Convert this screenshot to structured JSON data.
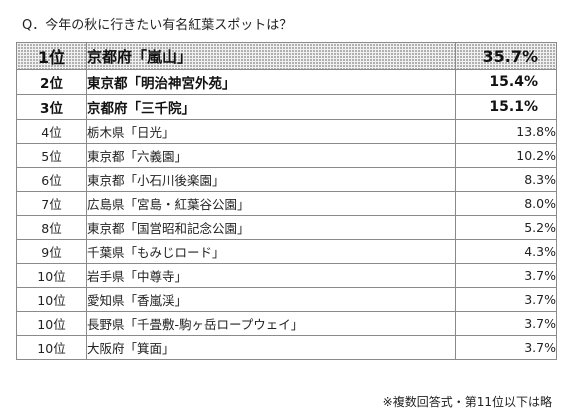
{
  "question": "Q．今年の秋に行きたい有名紅葉スポットは？",
  "rows": [
    {
      "rank": "1位",
      "spot": "京都府「嵐山」",
      "pct": "35.7%"
    },
    {
      "rank": "2位",
      "spot": "東京都「明治神宮外苑」",
      "pct": "15.4%"
    },
    {
      "rank": "3位",
      "spot": "京都府「三千院」",
      "pct": "15.1%"
    },
    {
      "rank": "4位",
      "spot": "栃木県「日光」",
      "pct": "13.8%"
    },
    {
      "rank": "5位",
      "spot": "東京都「六義園」",
      "pct": "10.2%"
    },
    {
      "rank": "6位",
      "spot": "東京都「小石川後楽園」",
      "pct": "8.3%"
    },
    {
      "rank": "7位",
      "spot": "広島県「宮島・紅葉谷公園」",
      "pct": "8.0%"
    },
    {
      "rank": "8位",
      "spot": "東京都「国営昭和記念公園」",
      "pct": "5.2%"
    },
    {
      "rank": "9位",
      "spot": "千葉県「もみじロード」",
      "pct": "4.3%"
    },
    {
      "rank": "10位",
      "spot": "岩手県「中尊寺」",
      "pct": "3.7%"
    },
    {
      "rank": "10位",
      "spot": "愛知県「香嵐渓」",
      "pct": "3.7%"
    },
    {
      "rank": "10位",
      "spot": "長野県「千畳敷-駒ヶ岳ロープウェイ」",
      "pct": "3.7%"
    },
    {
      "rank": "10位",
      "spot": "大阪府「箕面」",
      "pct": "3.7%"
    }
  ],
  "footnote": "※複数回答式・第11位以下は略"
}
